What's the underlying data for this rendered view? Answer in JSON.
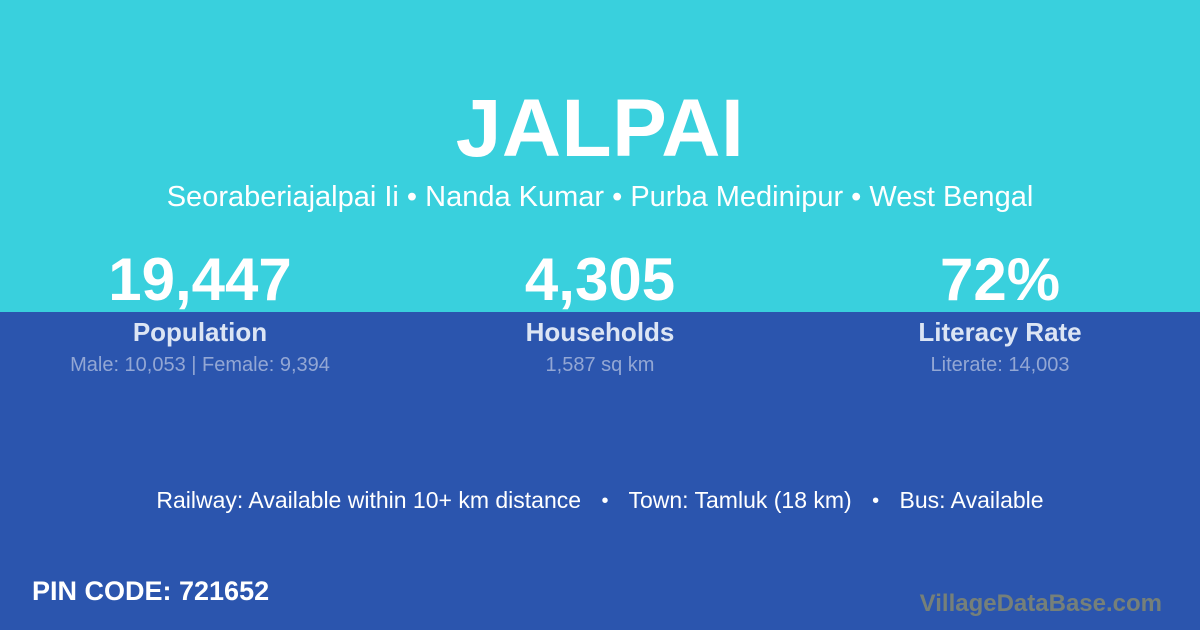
{
  "colors": {
    "cyan": "#39d0dd",
    "blue": "#2b55ae",
    "white": "#ffffff",
    "label": "#dce5f4",
    "detail": "#93a7d4",
    "watermark": "#768079"
  },
  "header": {
    "title": "JALPAI",
    "subtitle": "Seoraberiajalpai Ii • Nanda Kumar • Purba Medinipur • West Bengal"
  },
  "stats": [
    {
      "value": "19,447",
      "label": "Population",
      "detail": "Male: 10,053 | Female: 9,394"
    },
    {
      "value": "4,305",
      "label": "Households",
      "detail": "1,587 sq km"
    },
    {
      "value": "72%",
      "label": "Literacy Rate",
      "detail": "Literate: 14,003"
    }
  ],
  "info": {
    "railway": "Railway: Available within 10+ km distance",
    "separator": "•",
    "town": "Town: Tamluk (18 km)",
    "bus": "Bus: Available"
  },
  "footer": {
    "pin_code": "PIN CODE: 721652",
    "watermark": "VillageDataBase.com"
  }
}
